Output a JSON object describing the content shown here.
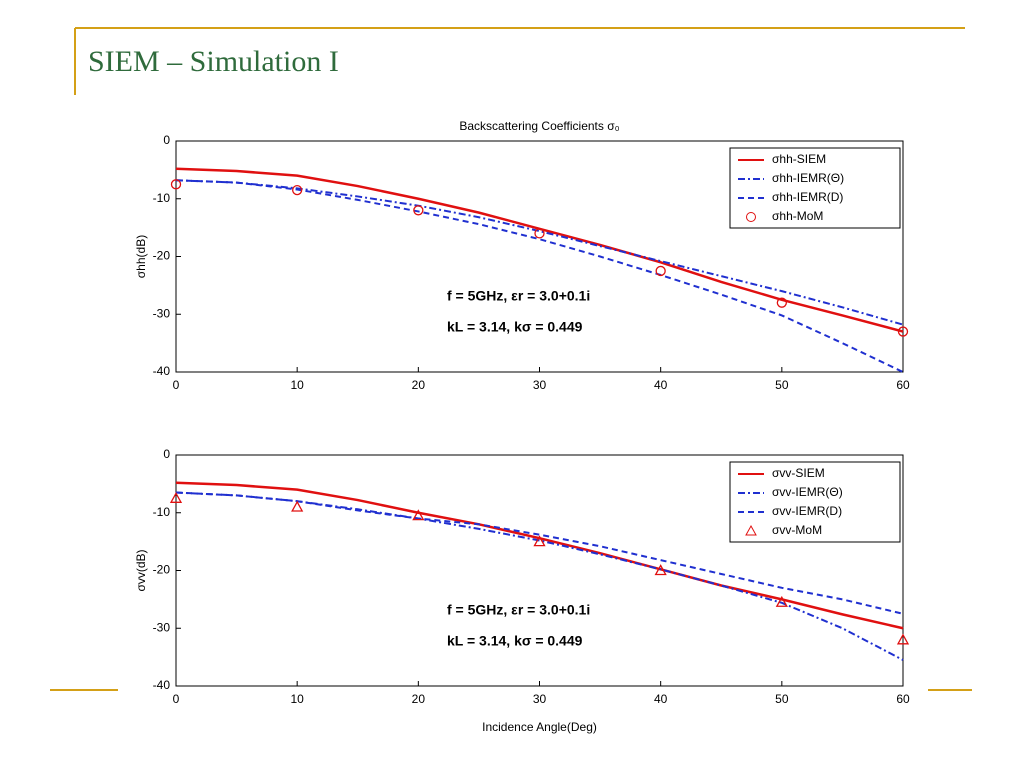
{
  "slide": {
    "title": "SIEM – Simulation I"
  },
  "chart_data": [
    {
      "type": "line",
      "title": "Backscattering Coefficients σ₀",
      "ylabel": "σhh(dB)",
      "x": [
        0,
        5,
        10,
        15,
        20,
        25,
        30,
        35,
        40,
        45,
        50,
        55,
        60
      ],
      "xlim": [
        0,
        60
      ],
      "xticks": [
        0,
        10,
        20,
        30,
        40,
        50,
        60
      ],
      "ylim": [
        -40,
        0
      ],
      "yticks": [
        -40,
        -30,
        -20,
        -10,
        0
      ],
      "annotations": [
        "f = 5GHz, εr = 3.0+0.1i",
        "kL = 3.14,  kσ = 0.449"
      ],
      "legend": "upper right",
      "series": [
        {
          "name": "σhh-SIEM",
          "color": "#e01010",
          "style": "solid",
          "values": [
            -4.8,
            -5.2,
            -6.0,
            -7.8,
            -10.0,
            -12.4,
            -15.2,
            -18.0,
            -21.0,
            -24.4,
            -27.5,
            -30.2,
            -33.0
          ]
        },
        {
          "name": "σhh-IEMR(Θ)",
          "color": "#2030d0",
          "style": "dashdot",
          "values": [
            -6.8,
            -7.2,
            -8.2,
            -9.6,
            -11.2,
            -13.2,
            -15.6,
            -18.2,
            -20.8,
            -23.4,
            -26.0,
            -28.8,
            -31.8
          ]
        },
        {
          "name": "σhh-IEMR(D)",
          "color": "#2030d0",
          "style": "dashed",
          "values": [
            -6.8,
            -7.2,
            -8.4,
            -10.2,
            -12.2,
            -14.4,
            -17.0,
            -20.0,
            -23.2,
            -26.6,
            -30.2,
            -35.0,
            -40.0
          ]
        },
        {
          "name": "σhh-MoM",
          "color": "#e01010",
          "style": "circle",
          "values": [
            -7.5,
            null,
            -8.5,
            null,
            -12.0,
            null,
            -16.0,
            null,
            -22.5,
            null,
            -28.0,
            null,
            -33.0
          ]
        }
      ]
    },
    {
      "type": "line",
      "xlabel": "Incidence Angle(Deg)",
      "ylabel": "σvv(dB)",
      "x": [
        0,
        5,
        10,
        15,
        20,
        25,
        30,
        35,
        40,
        45,
        50,
        55,
        60
      ],
      "xlim": [
        0,
        60
      ],
      "xticks": [
        0,
        10,
        20,
        30,
        40,
        50,
        60
      ],
      "ylim": [
        -40,
        0
      ],
      "yticks": [
        -40,
        -30,
        -20,
        -10,
        0
      ],
      "annotations": [
        "f = 5GHz, εr = 3.0+0.1i",
        "kL = 3.14,  kσ = 0.449"
      ],
      "legend": "upper right",
      "series": [
        {
          "name": "σvv-SIEM",
          "color": "#e01010",
          "style": "solid",
          "values": [
            -4.8,
            -5.2,
            -6.0,
            -7.8,
            -10.0,
            -12.0,
            -14.4,
            -17.0,
            -19.8,
            -22.6,
            -25.0,
            -27.6,
            -30.0
          ]
        },
        {
          "name": "σvv-IEMR(Θ)",
          "color": "#2030d0",
          "style": "dashdot",
          "values": [
            -6.5,
            -7.0,
            -8.0,
            -9.4,
            -11.0,
            -12.8,
            -14.8,
            -17.2,
            -19.8,
            -22.6,
            -25.6,
            -30.0,
            -35.5
          ]
        },
        {
          "name": "σvv-IEMR(D)",
          "color": "#2030d0",
          "style": "dashed",
          "values": [
            -6.5,
            -7.0,
            -8.0,
            -9.6,
            -11.0,
            -12.0,
            -13.8,
            -15.8,
            -18.2,
            -20.6,
            -23.0,
            -25.0,
            -27.5
          ]
        },
        {
          "name": "σvv-MoM",
          "color": "#e01010",
          "style": "triangle",
          "values": [
            -7.5,
            null,
            -9.0,
            null,
            -10.5,
            null,
            -15.0,
            null,
            -20.0,
            null,
            -25.5,
            null,
            -32.0
          ]
        }
      ]
    }
  ]
}
